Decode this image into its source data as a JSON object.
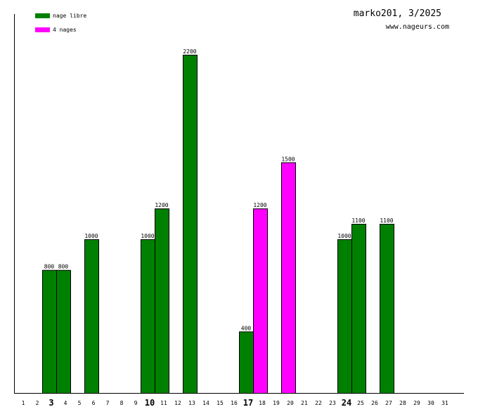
{
  "chart_data": {
    "type": "bar",
    "title": "marko201, 3/2025",
    "subtitle": "www.nageurs.com",
    "legend_position": "top-left",
    "legend": [
      {
        "name": "nage libre",
        "color": "#008000"
      },
      {
        "name": "4 nages",
        "color": "#ff00ff"
      }
    ],
    "categories": [
      "1",
      "2",
      "3",
      "4",
      "5",
      "6",
      "7",
      "8",
      "9",
      "10",
      "11",
      "12",
      "13",
      "14",
      "15",
      "16",
      "17",
      "18",
      "19",
      "20",
      "21",
      "22",
      "23",
      "24",
      "25",
      "26",
      "27",
      "28",
      "29",
      "30",
      "31"
    ],
    "bold_categories": [
      "3",
      "10",
      "17",
      "24"
    ],
    "bars": [
      {
        "day": 3,
        "value": 800,
        "series": "nage libre"
      },
      {
        "day": 4,
        "value": 800,
        "series": "nage libre"
      },
      {
        "day": 6,
        "value": 1000,
        "series": "nage libre"
      },
      {
        "day": 10,
        "value": 1000,
        "series": "nage libre"
      },
      {
        "day": 11,
        "value": 1200,
        "series": "nage libre"
      },
      {
        "day": 13,
        "value": 2200,
        "series": "nage libre"
      },
      {
        "day": 17,
        "value": 400,
        "series": "nage libre"
      },
      {
        "day": 18,
        "value": 1200,
        "series": "4 nages"
      },
      {
        "day": 20,
        "value": 1500,
        "series": "4 nages"
      },
      {
        "day": 24,
        "value": 1000,
        "series": "nage libre"
      },
      {
        "day": 25,
        "value": 1100,
        "series": "nage libre"
      },
      {
        "day": 27,
        "value": 1100,
        "series": "nage libre"
      }
    ],
    "ylim": [
      0,
      2200
    ],
    "grid": false
  }
}
